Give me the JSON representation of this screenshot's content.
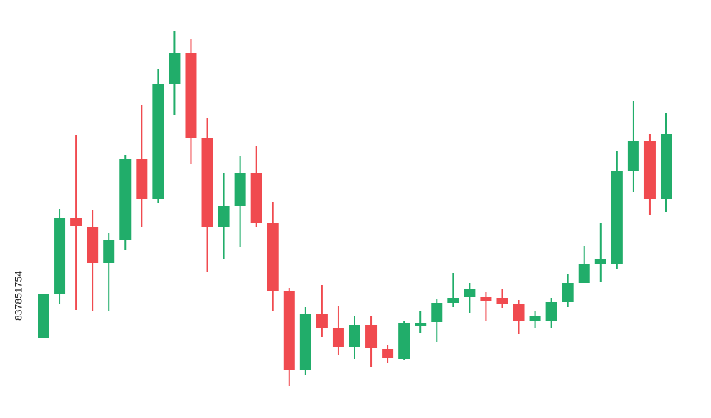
{
  "chart_data": {
    "type": "candlestick",
    "watermark_id": "837851754",
    "up_color": "#21ad6a",
    "down_color": "#f04a4f",
    "ylim": [
      0,
      588
    ],
    "open": [
      112,
      175,
      281,
      269,
      218,
      250,
      364,
      308,
      470,
      513,
      394,
      268,
      298,
      344,
      275,
      178,
      68,
      146,
      127,
      100,
      131,
      97,
      83,
      130,
      135,
      162,
      170,
      170,
      169,
      160,
      137,
      137,
      163,
      190,
      216,
      216,
      348,
      389,
      308
    ],
    "high": [
      175,
      294,
      398,
      293,
      260,
      370,
      440,
      491,
      545,
      533,
      422,
      344,
      368,
      382,
      304,
      183,
      156,
      187,
      158,
      143,
      144,
      103,
      136,
      151,
      168,
      204,
      190,
      177,
      182,
      166,
      150,
      169,
      202,
      242,
      274,
      376,
      446,
      400,
      429
    ],
    "low": [
      112,
      160,
      152,
      150,
      150,
      237,
      268,
      302,
      426,
      357,
      205,
      223,
      240,
      268,
      150,
      45,
      60,
      114,
      88,
      83,
      72,
      78,
      82,
      119,
      107,
      156,
      148,
      137,
      155,
      118,
      126,
      126,
      156,
      190,
      192,
      210,
      318,
      285,
      290
    ],
    "close": [
      175,
      281,
      270,
      218,
      250,
      364,
      308,
      470,
      513,
      394,
      268,
      298,
      344,
      275,
      178,
      68,
      146,
      127,
      100,
      131,
      98,
      84,
      134,
      134,
      162,
      169,
      181,
      164,
      160,
      137,
      143,
      163,
      190,
      216,
      224,
      348,
      389,
      308,
      399
    ]
  }
}
